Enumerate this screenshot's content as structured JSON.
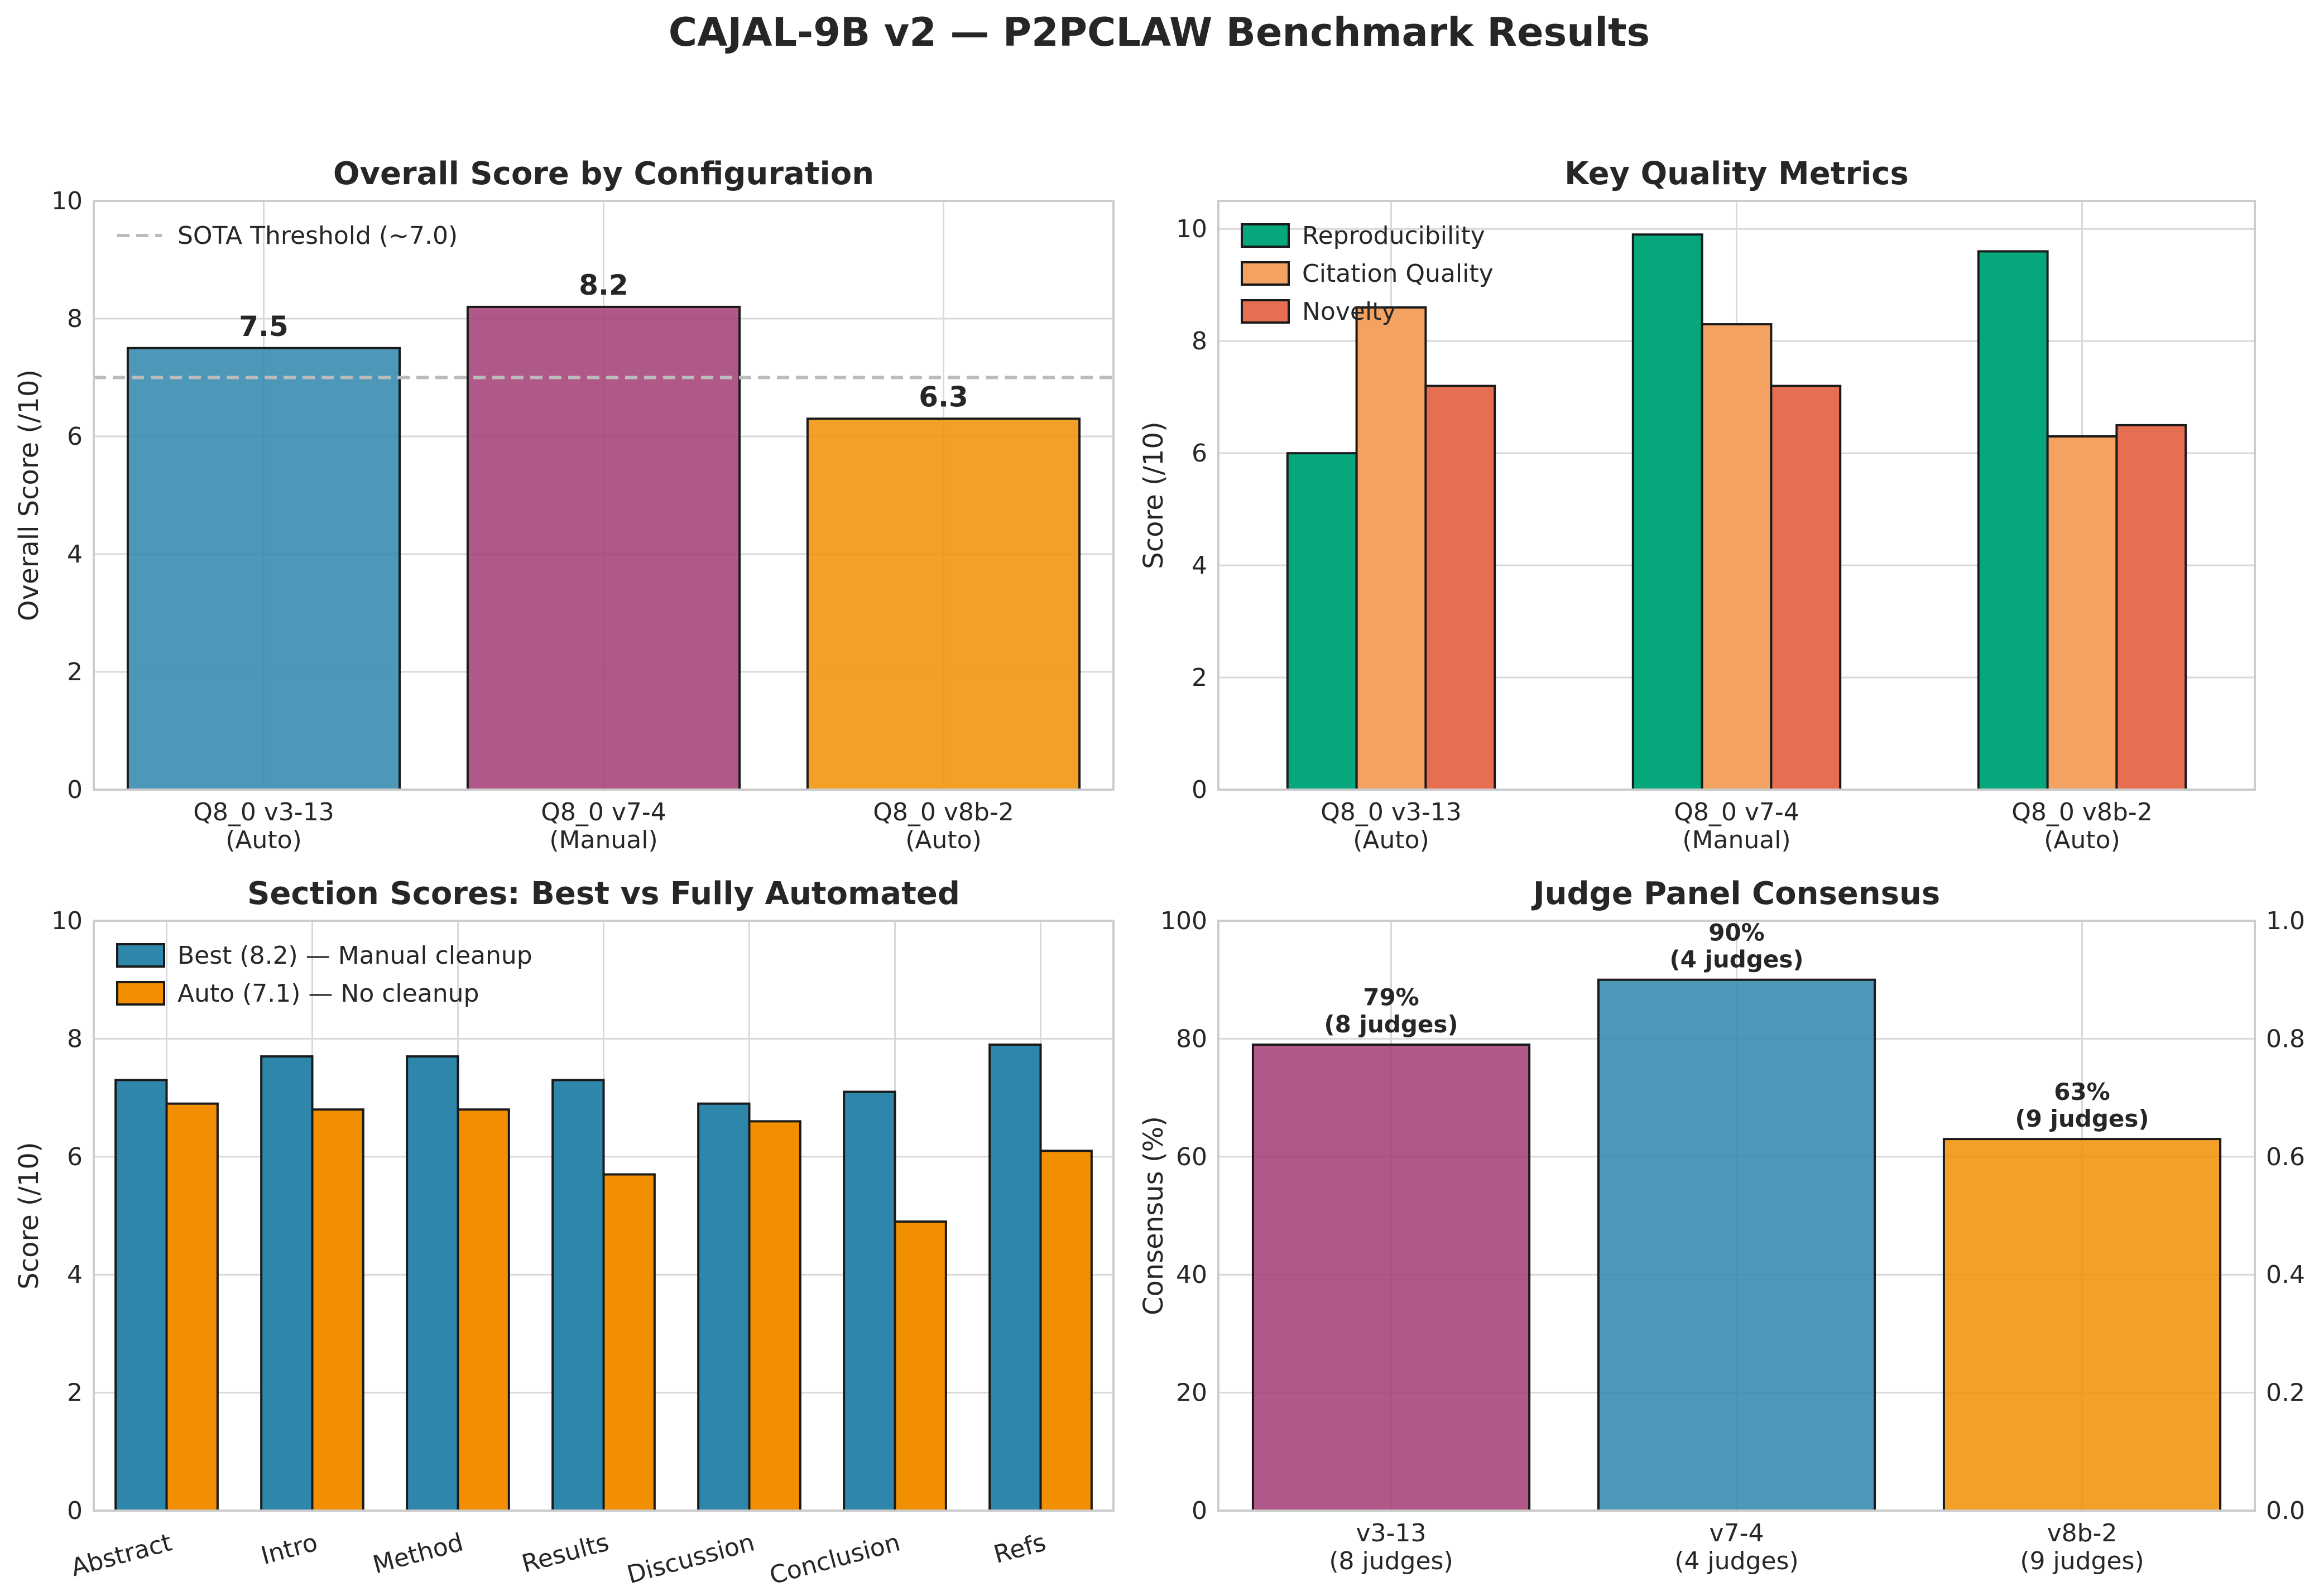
{
  "title": "CAJAL-9B v2 — P2PCLAW Benchmark Results",
  "chart_data": [
    {
      "type": "bar",
      "title": "Overall Score by Configuration",
      "ylabel": "Overall Score (/10)",
      "xlabel": "",
      "categories": [
        "Q8_0 v3-13\n(Auto)",
        "Q8_0 v7-4\n(Manual)",
        "Q8_0 v8b-2\n(Auto)"
      ],
      "values": [
        7.5,
        8.2,
        6.3
      ],
      "value_labels": [
        "7.5",
        "8.2",
        "6.3"
      ],
      "colors": [
        "#2e86ab",
        "#a23b72",
        "#f18f01"
      ],
      "ylim": [
        0,
        10
      ],
      "yticks": [
        0,
        2,
        4,
        6,
        8,
        10
      ],
      "reference_line": {
        "value": 7.0,
        "label": "SOTA Threshold (~7.0)",
        "color": "#bbbbbb"
      },
      "legend_position": "top-left",
      "grid": true
    },
    {
      "type": "bar",
      "title": "Key Quality Metrics",
      "ylabel": "Score (/10)",
      "xlabel": "",
      "categories": [
        "Q8_0 v3-13\n(Auto)",
        "Q8_0 v7-4\n(Manual)",
        "Q8_0 v8b-2\n(Auto)"
      ],
      "series": [
        {
          "name": "Reproducibility",
          "values": [
            6.0,
            9.9,
            9.6
          ],
          "color": "#06a77d"
        },
        {
          "name": "Citation Quality",
          "values": [
            8.6,
            8.3,
            6.3
          ],
          "color": "#f4a261"
        },
        {
          "name": "Novelty",
          "values": [
            7.2,
            7.2,
            6.5
          ],
          "color": "#e76f51"
        }
      ],
      "ylim": [
        0,
        10.5
      ],
      "yticks": [
        0,
        2,
        4,
        6,
        8,
        10
      ],
      "legend_position": "top-left",
      "grid": true
    },
    {
      "type": "bar",
      "title": "Section Scores: Best vs Fully Automated",
      "ylabel": "Score (/10)",
      "xlabel": "",
      "categories": [
        "Abstract",
        "Intro",
        "Method",
        "Results",
        "Discussion",
        "Conclusion",
        "Refs"
      ],
      "series": [
        {
          "name": "Best (8.2) — Manual cleanup",
          "values": [
            7.3,
            7.7,
            7.7,
            7.3,
            6.9,
            7.1,
            7.9
          ],
          "color": "#2e86ab"
        },
        {
          "name": "Auto (7.1) — No cleanup",
          "values": [
            6.9,
            6.8,
            6.8,
            5.7,
            6.6,
            4.9,
            6.1
          ],
          "color": "#f18f01"
        }
      ],
      "ylim": [
        0,
        10
      ],
      "yticks": [
        0,
        2,
        4,
        6,
        8,
        10
      ],
      "legend_position": "top-left",
      "grid": true
    },
    {
      "type": "bar",
      "title": "Judge Panel Consensus",
      "ylabel": "Consensus (%)",
      "xlabel": "",
      "categories": [
        "v3-13\n(8 judges)",
        "v7-4\n(4 judges)",
        "v8b-2\n(9 judges)"
      ],
      "values": [
        79,
        90,
        63
      ],
      "value_labels": [
        "79%\n(8 judges)",
        "90%\n(4 judges)",
        "63%\n(9 judges)"
      ],
      "colors": [
        "#a23b72",
        "#2e86ab",
        "#f18f01"
      ],
      "ylim": [
        0,
        100
      ],
      "yticks": [
        0,
        20,
        40,
        60,
        80,
        100
      ],
      "secondary_ylim": [
        0,
        1
      ],
      "secondary_yticks": [
        "0.0",
        "0.2",
        "0.4",
        "0.6",
        "0.8",
        "1.0"
      ],
      "grid": true
    }
  ]
}
